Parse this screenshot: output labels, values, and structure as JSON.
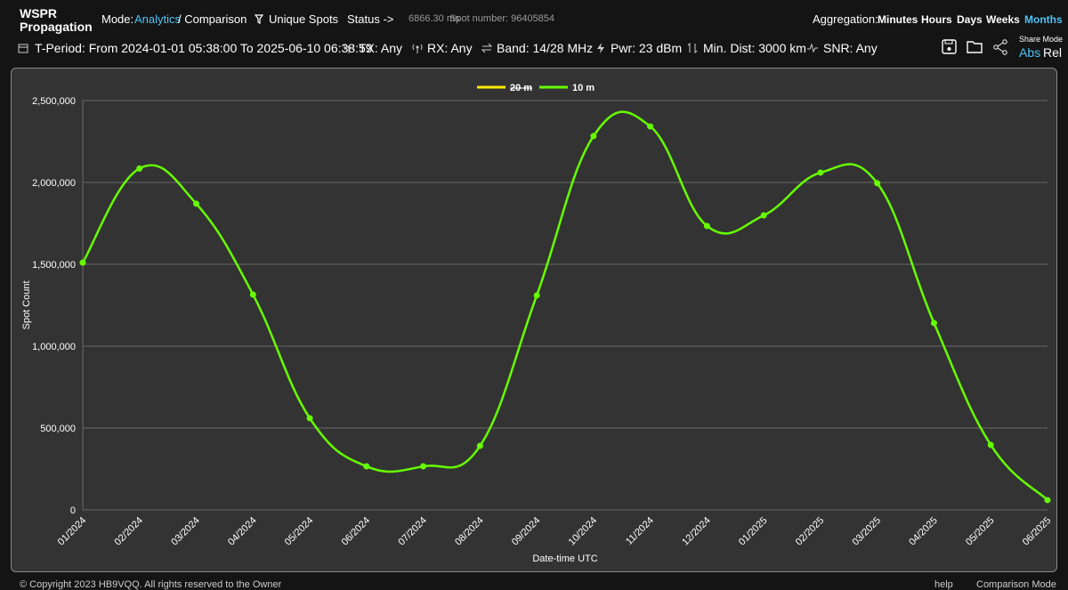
{
  "header": {
    "title_line1": "WSPR",
    "title_line2": "Propagation",
    "mode_label": "Mode:",
    "mode_value": "Analytics",
    "mode_alt": "/ Comparison",
    "filter": "Unique Spots",
    "status_label": "Status ->",
    "status_time": "6866.30 ms",
    "spot_number": "Spot number: 96405854",
    "aggregation_label": "Aggregation:",
    "aggregation_options": [
      "Minutes",
      "Hours",
      "Days",
      "Weeks",
      "Months"
    ],
    "aggregation_active_index": 4,
    "filters": [
      "T-Period: From 2024-01-01 05:38:00 To 2025-06-10 06:38:59",
      "TX: Any",
      "RX: Any",
      "Band: 14/28 MHz",
      "Pwr: 23 dBm",
      "Min. Dist: 3000 km",
      "SNR: Any"
    ],
    "share_mode": "Share Mode",
    "share_options": [
      "Abs",
      "Rel"
    ],
    "share_active_index": 0
  },
  "chart_data": {
    "type": "line",
    "x_label": "Date-time UTC",
    "y_label": "Spot Count",
    "categories": [
      "01/2024",
      "02/2024",
      "03/2024",
      "04/2024",
      "05/2024",
      "06/2024",
      "07/2024",
      "08/2024",
      "09/2024",
      "10/2024",
      "11/2024",
      "12/2024",
      "01/2025",
      "02/2025",
      "03/2025",
      "04/2025",
      "05/2025",
      "06/2025"
    ],
    "series": [
      {
        "name": "20 m",
        "color": "#ffea00",
        "hidden": true
      },
      {
        "name": "10 m",
        "color": "#66ff00",
        "values": [
          1510000,
          2085000,
          1870000,
          1315000,
          560000,
          266000,
          266000,
          391000,
          1310000,
          2283000,
          2342000,
          1734000,
          1799000,
          2060000,
          1995000,
          1141000,
          397000,
          60000
        ]
      }
    ],
    "ylim": [
      0,
      2500000
    ],
    "yticks": [
      0,
      {
        "value": 500000,
        "label": "500,000"
      },
      {
        "value": 1000000,
        "label": "1,000,000"
      },
      {
        "value": 1500000,
        "label": "1,500,000"
      },
      {
        "value": 2000000,
        "label": "2,000,000"
      },
      {
        "value": 2500000,
        "label": "2,500,000"
      }
    ],
    "grid": true,
    "legend": "top"
  },
  "footer": {
    "copyright": "© Copyright 2023 HB9VQQ. All rights reserved to the Owner",
    "help": "help",
    "comparison": "Comparison Mode"
  }
}
